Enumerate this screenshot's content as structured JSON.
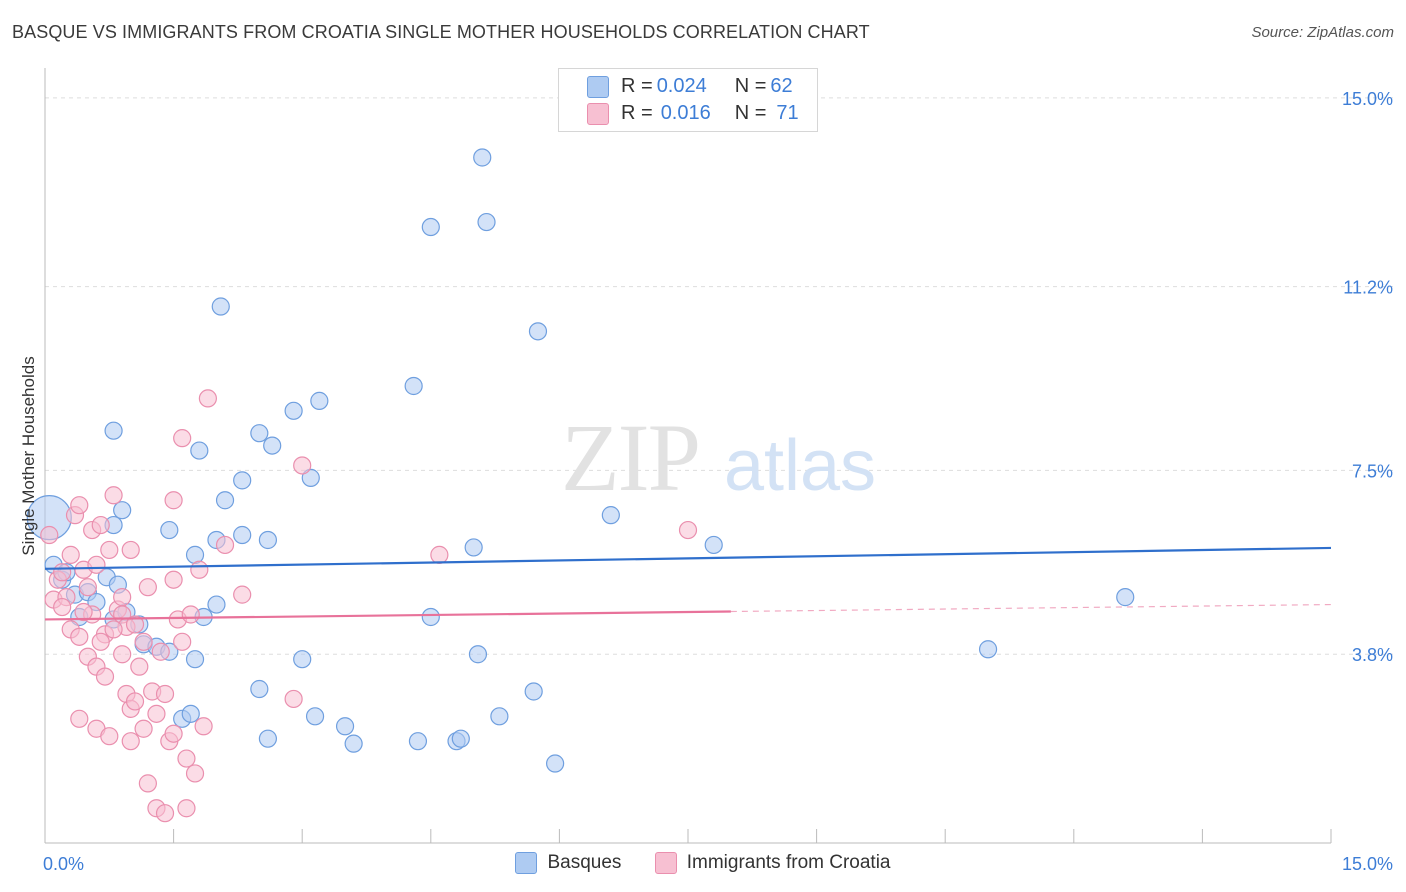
{
  "title": "BASQUE VS IMMIGRANTS FROM CROATIA SINGLE MOTHER HOUSEHOLDS CORRELATION CHART",
  "source": "Source: ZipAtlas.com",
  "watermark": {
    "zip": "ZIP",
    "atlas": "atlas"
  },
  "colors": {
    "blue_fill": "#aecbf2",
    "blue_stroke": "#6f9fdf",
    "blue_line": "#2f6fcc",
    "pink_fill": "#f7c0d2",
    "pink_stroke": "#ea8fae",
    "pink_line": "#e8729a",
    "accent_text": "#3d7dd6",
    "grid": "#dddddd"
  },
  "stats": [
    {
      "r_label": "R = ",
      "r_value": "0.024",
      "n_label": "N = ",
      "n_value": "62",
      "series": "blue"
    },
    {
      "r_label": "R = ",
      "r_value": "0.016",
      "n_label": "N = ",
      "n_value": "71",
      "series": "pink"
    }
  ],
  "legend": [
    {
      "label": "Basques",
      "series": "blue"
    },
    {
      "label": "Immigrants from Croatia",
      "series": "pink"
    }
  ],
  "chart_data": {
    "type": "scatter",
    "title": "BASQUE VS IMMIGRANTS FROM CROATIA SINGLE MOTHER HOUSEHOLDS CORRELATION CHART",
    "xlabel": "",
    "ylabel": "Single Mother Households",
    "xlim": [
      0,
      15
    ],
    "ylim": [
      0,
      15.4
    ],
    "x_tick_labels": [
      "0.0%",
      "15.0%"
    ],
    "y_ticks": [
      3.8,
      7.5,
      11.2,
      15.0
    ],
    "y_tick_labels": [
      "3.8%",
      "7.5%",
      "11.2%",
      "15.0%"
    ],
    "grid": true,
    "series": [
      {
        "name": "Basques",
        "color": "blue",
        "trend": {
          "x": [
            0,
            15
          ],
          "y": [
            5.52,
            5.94
          ],
          "dashed_from": null
        },
        "points": [
          [
            0.05,
            6.55
          ],
          [
            0.1,
            5.6
          ],
          [
            0.2,
            5.3
          ],
          [
            0.25,
            5.45
          ],
          [
            0.35,
            5.0
          ],
          [
            0.4,
            4.55
          ],
          [
            0.5,
            5.05
          ],
          [
            0.6,
            4.85
          ],
          [
            0.72,
            5.35
          ],
          [
            0.85,
            5.2
          ],
          [
            0.8,
            4.5
          ],
          [
            0.95,
            4.65
          ],
          [
            1.1,
            4.4
          ],
          [
            1.15,
            4.0
          ],
          [
            1.3,
            3.95
          ],
          [
            1.45,
            3.85
          ],
          [
            1.6,
            2.5
          ],
          [
            1.7,
            2.6
          ],
          [
            1.75,
            3.7
          ],
          [
            1.85,
            4.55
          ],
          [
            2.0,
            4.8
          ],
          [
            1.45,
            6.3
          ],
          [
            1.75,
            5.8
          ],
          [
            2.0,
            6.1
          ],
          [
            2.3,
            6.2
          ],
          [
            2.6,
            6.1
          ],
          [
            0.9,
            6.7
          ],
          [
            0.8,
            6.4
          ],
          [
            0.8,
            8.3
          ],
          [
            1.8,
            7.9
          ],
          [
            2.1,
            6.9
          ],
          [
            2.3,
            7.3
          ],
          [
            2.5,
            8.25
          ],
          [
            2.65,
            8.0
          ],
          [
            2.9,
            8.7
          ],
          [
            3.2,
            8.9
          ],
          [
            3.1,
            7.35
          ],
          [
            2.05,
            10.8
          ],
          [
            4.3,
            9.2
          ],
          [
            4.5,
            12.4
          ],
          [
            5.1,
            13.8
          ],
          [
            5.15,
            12.5
          ],
          [
            5.75,
            10.3
          ],
          [
            6.6,
            6.6
          ],
          [
            7.8,
            6.0
          ],
          [
            3.0,
            3.7
          ],
          [
            3.15,
            2.55
          ],
          [
            3.5,
            2.35
          ],
          [
            3.6,
            2.0
          ],
          [
            4.35,
            2.05
          ],
          [
            4.5,
            4.55
          ],
          [
            4.8,
            2.05
          ],
          [
            4.85,
            2.1
          ],
          [
            5.0,
            5.95
          ],
          [
            5.05,
            3.8
          ],
          [
            5.3,
            2.55
          ],
          [
            5.7,
            3.05
          ],
          [
            5.95,
            1.6
          ],
          [
            2.5,
            3.1
          ],
          [
            2.6,
            2.1
          ],
          [
            11.0,
            3.9
          ],
          [
            12.6,
            4.95
          ]
        ]
      },
      {
        "name": "Immigrants from Croatia",
        "color": "pink",
        "trend": {
          "x": [
            0,
            15
          ],
          "y": [
            4.5,
            4.8
          ],
          "dashed_from": 8.0
        },
        "points": [
          [
            0.05,
            6.2
          ],
          [
            0.1,
            4.9
          ],
          [
            0.15,
            5.3
          ],
          [
            0.2,
            5.45
          ],
          [
            0.25,
            4.95
          ],
          [
            0.3,
            5.8
          ],
          [
            0.35,
            6.6
          ],
          [
            0.4,
            6.8
          ],
          [
            0.45,
            5.5
          ],
          [
            0.5,
            5.15
          ],
          [
            0.55,
            6.3
          ],
          [
            0.6,
            5.6
          ],
          [
            0.65,
            6.4
          ],
          [
            0.7,
            4.2
          ],
          [
            0.75,
            5.9
          ],
          [
            0.8,
            7.0
          ],
          [
            0.85,
            4.7
          ],
          [
            0.9,
            4.6
          ],
          [
            0.95,
            4.35
          ],
          [
            1.0,
            5.9
          ],
          [
            0.3,
            4.3
          ],
          [
            0.4,
            4.15
          ],
          [
            0.5,
            3.75
          ],
          [
            0.6,
            3.55
          ],
          [
            0.65,
            4.05
          ],
          [
            0.7,
            3.35
          ],
          [
            0.8,
            4.3
          ],
          [
            0.9,
            3.8
          ],
          [
            0.95,
            3.0
          ],
          [
            1.0,
            2.7
          ],
          [
            1.05,
            2.85
          ],
          [
            1.1,
            3.55
          ],
          [
            1.15,
            4.05
          ],
          [
            1.25,
            3.05
          ],
          [
            1.3,
            2.6
          ],
          [
            1.35,
            3.85
          ],
          [
            1.4,
            3.0
          ],
          [
            1.45,
            2.05
          ],
          [
            1.5,
            2.2
          ],
          [
            1.55,
            4.5
          ],
          [
            1.6,
            4.05
          ],
          [
            1.65,
            1.7
          ],
          [
            1.7,
            4.6
          ],
          [
            1.75,
            1.4
          ],
          [
            0.4,
            2.5
          ],
          [
            0.6,
            2.3
          ],
          [
            0.75,
            2.15
          ],
          [
            1.0,
            2.05
          ],
          [
            1.2,
            1.2
          ],
          [
            1.3,
            0.7
          ],
          [
            1.4,
            0.6
          ],
          [
            1.65,
            0.7
          ],
          [
            1.2,
            5.15
          ],
          [
            1.5,
            5.3
          ],
          [
            1.8,
            5.5
          ],
          [
            1.5,
            6.9
          ],
          [
            1.6,
            8.15
          ],
          [
            1.9,
            8.95
          ],
          [
            2.1,
            6.0
          ],
          [
            2.3,
            5.0
          ],
          [
            2.9,
            2.9
          ],
          [
            3.0,
            7.6
          ],
          [
            4.6,
            5.8
          ],
          [
            7.5,
            6.3
          ],
          [
            1.85,
            2.35
          ],
          [
            0.55,
            4.6
          ],
          [
            0.9,
            4.95
          ],
          [
            1.05,
            4.4
          ],
          [
            1.15,
            2.3
          ],
          [
            0.2,
            4.75
          ],
          [
            0.45,
            4.65
          ]
        ]
      }
    ]
  }
}
